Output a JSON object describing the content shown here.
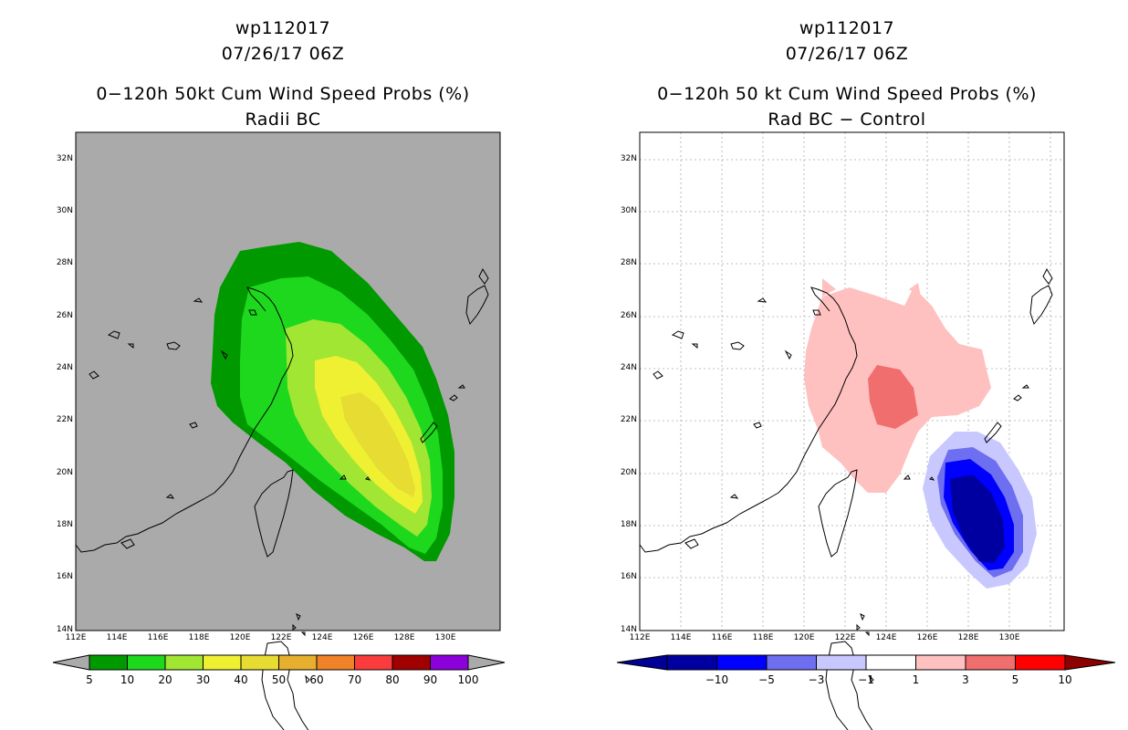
{
  "left_panel": {
    "storm_id": "wp112017",
    "datetime": "07/26/17 06Z",
    "title": "0−120h 50kt Cum Wind Speed Probs (%)",
    "subtitle": "Radii BC",
    "lat_labels": [
      "32N",
      "30N",
      "28N",
      "26N",
      "24N",
      "22N",
      "20N",
      "18N",
      "16N",
      "14N"
    ],
    "lon_labels": [
      "112E",
      "114E",
      "116E",
      "118E",
      "120E",
      "122E",
      "124E",
      "126E",
      "128E",
      "130E"
    ],
    "colorbar_labels": [
      "5",
      "10",
      "20",
      "30",
      "40",
      "50",
      "60",
      "70",
      "80",
      "90",
      "100"
    ],
    "colorbar_colors": [
      "#009a00",
      "#1ed81e",
      "#a0e632",
      "#f0f032",
      "#e6dc32",
      "#e6af2d",
      "#f08228",
      "#fa3c3c",
      "#a00000",
      "#8c00dc"
    ],
    "background_color": "#aaaaaa"
  },
  "right_panel": {
    "storm_id": "wp112017",
    "datetime": "07/26/17 06Z",
    "title": "0−120h 50 kt Cum Wind Speed Probs (%)",
    "subtitle": "Rad BC − Control",
    "lat_labels": [
      "32N",
      "30N",
      "28N",
      "26N",
      "24N",
      "22N",
      "20N",
      "18N",
      "16N",
      "14N"
    ],
    "lon_labels": [
      "112E",
      "114E",
      "116E",
      "118E",
      "120E",
      "122E",
      "124E",
      "126E",
      "128E",
      "130E"
    ],
    "colorbar_labels": [
      "−10",
      "−5",
      "−3",
      "−1",
      "1",
      "3",
      "5",
      "10"
    ],
    "colorbar_colors": [
      "#0000a0",
      "#0000ff",
      "#6e6ef0",
      "#c8c8ff",
      "#ffffff",
      "#ffc0c0",
      "#f06e6e",
      "#ff0000"
    ],
    "end_colors": [
      "#000096",
      "#8c0000"
    ]
  }
}
